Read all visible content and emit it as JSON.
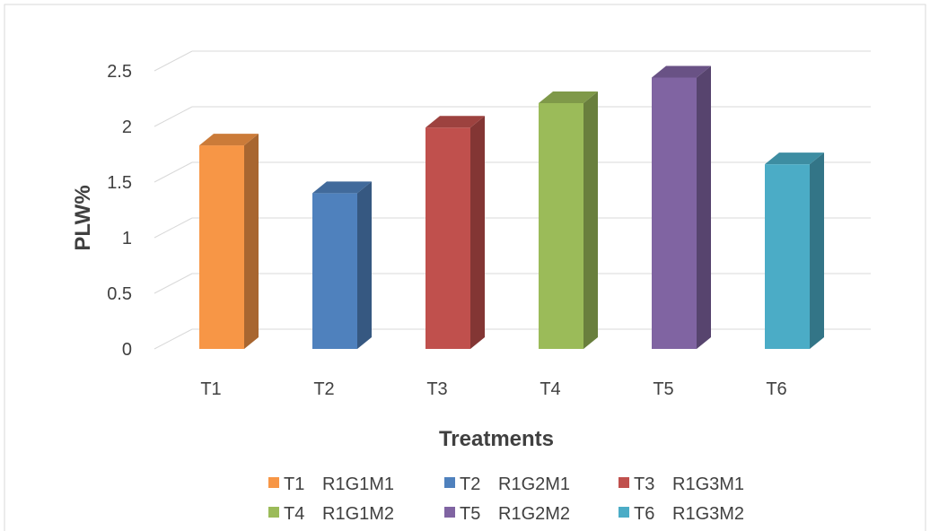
{
  "chart_data": {
    "type": "bar",
    "style": "3d-column",
    "categories": [
      "T1",
      "T2",
      "T3",
      "T4",
      "T5",
      "T6"
    ],
    "values": [
      1.83,
      1.4,
      1.99,
      2.21,
      2.44,
      1.66
    ],
    "colors": [
      "#F79646",
      "#4F81BD",
      "#C0504D",
      "#9BBB59",
      "#8064A2",
      "#4BACC6"
    ],
    "title": "",
    "xlabel": "Treatments",
    "ylabel": "PLW%",
    "ylim": [
      0,
      2.5
    ],
    "yticks": [
      "0",
      "0.5",
      "1",
      "1.5",
      "2",
      "2.5"
    ],
    "grid": true,
    "legend_position": "bottom",
    "legend": [
      {
        "code": "T1",
        "label": "R1G1M1"
      },
      {
        "code": "T2",
        "label": "R1G2M1"
      },
      {
        "code": "T3",
        "label": "R1G3M1"
      },
      {
        "code": "T4",
        "label": "R1G1M2"
      },
      {
        "code": "T5",
        "label": "R1G2M2"
      },
      {
        "code": "T6",
        "label": "R1G3M2"
      }
    ]
  }
}
